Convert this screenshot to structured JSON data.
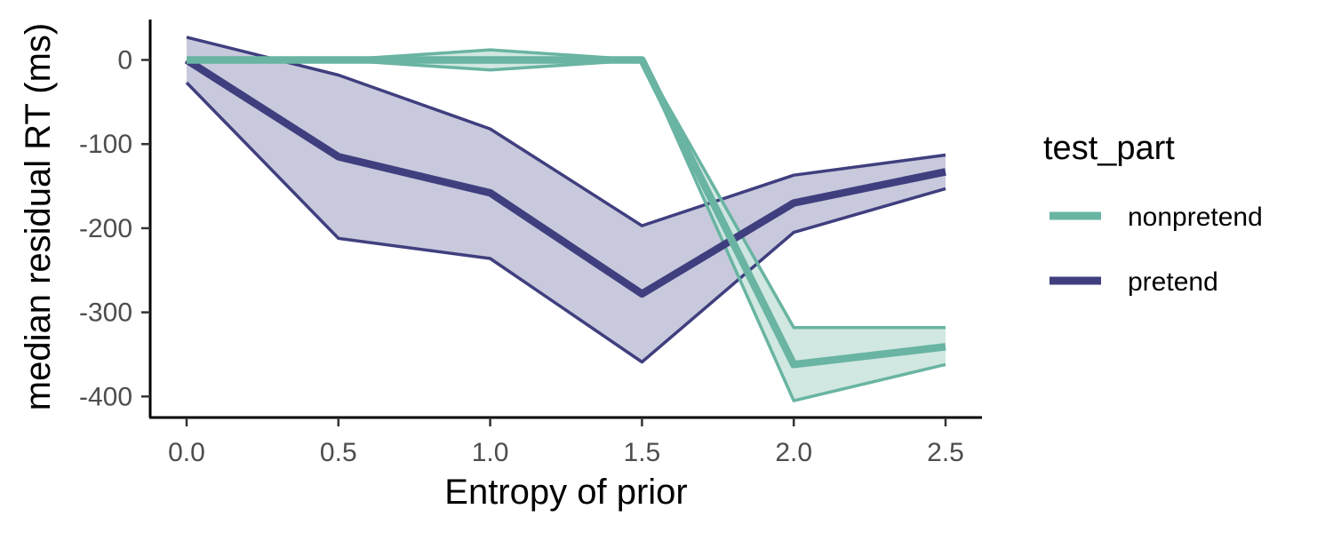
{
  "chart_data": {
    "type": "line",
    "xlabel": "Entropy of prior",
    "ylabel": "median residual RT (ms)",
    "x": [
      0.0,
      0.5,
      1.0,
      1.5,
      2.0,
      2.5
    ],
    "x_ticks": [
      0.0,
      0.5,
      1.0,
      1.5,
      2.0,
      2.5
    ],
    "x_tick_labels": [
      "0.0",
      "0.5",
      "1.0",
      "1.5",
      "2.0",
      "2.5"
    ],
    "y_ticks": [
      0,
      -100,
      -200,
      -300,
      -400
    ],
    "y_tick_labels": [
      "0",
      "-100",
      "-200",
      "-300",
      "-400"
    ],
    "xlim": [
      -0.12,
      2.62
    ],
    "ylim": [
      -425,
      48
    ],
    "grid": false,
    "legend": {
      "title": "test_part",
      "placement": "right"
    },
    "series": [
      {
        "name": "pretend",
        "color": "#3f3f7f",
        "fill": "#c5c6da",
        "values": [
          0,
          -115,
          -158,
          -278,
          -170,
          -133
        ],
        "upper": [
          27,
          -18,
          -82,
          -197,
          -137,
          -113
        ],
        "lower": [
          -27,
          -212,
          -236,
          -359,
          -205,
          -153
        ]
      },
      {
        "name": "nonpretend",
        "color": "#69b4a2",
        "fill": "#cfe6e0",
        "values": [
          0,
          0,
          0,
          0,
          -362,
          -341
        ],
        "upper": [
          0,
          0,
          12,
          0,
          -318,
          -318
        ],
        "lower": [
          0,
          0,
          -12,
          0,
          -405,
          -362
        ]
      }
    ]
  }
}
